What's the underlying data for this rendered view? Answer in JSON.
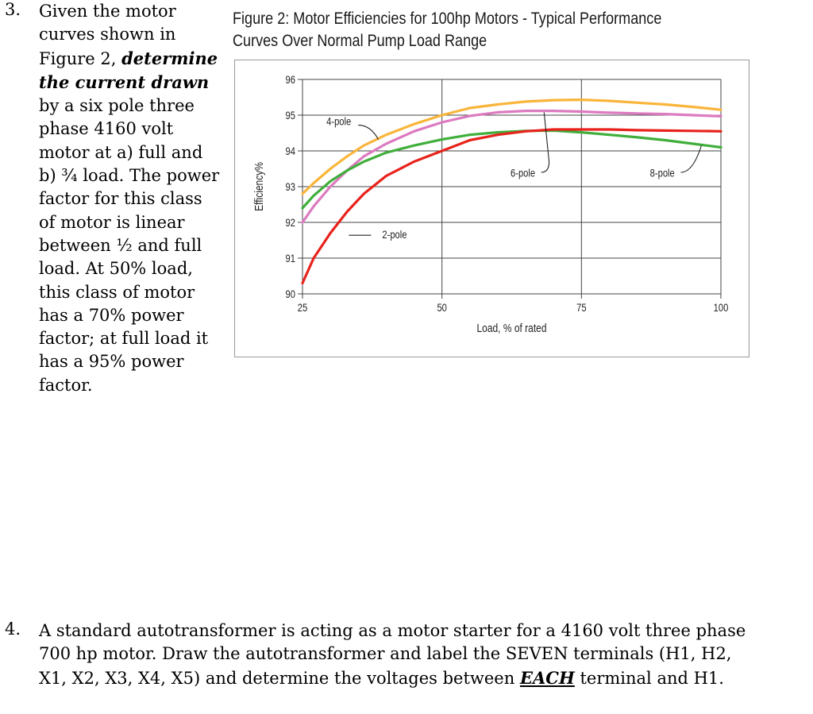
{
  "question3": {
    "number": "3.",
    "text_before": "Given the motor curves shown in Figure 2, ",
    "emphasis": "determine the current drawn",
    "text_after": " by a six pole three phase 4160 volt motor at a) full and b) ¾ load.  The power factor for this class of motor is linear between ½ and full load.  At 50% load, this class of motor has a 70% power factor; at full load it has a 95% power factor."
  },
  "figure": {
    "title_line1": "Figure 2: Motor Efficiencies for 100hp Motors - Typical Performance",
    "title_line2": "Curves Over Normal Pump Load Range"
  },
  "chart_data": {
    "type": "line",
    "title": "Figure 2: Motor Efficiencies for 100hp Motors - Typical Performance Curves Over Normal Pump Load Range",
    "xlabel": "Load, % of rated",
    "ylabel": "Efficiency%",
    "xlim": [
      25,
      100
    ],
    "ylim": [
      90,
      96
    ],
    "xticks": [
      25,
      50,
      75,
      100
    ],
    "yticks": [
      90,
      91,
      92,
      93,
      94,
      95,
      96
    ],
    "grid": true,
    "series": [
      {
        "name": "2-pole",
        "color": "#e8221b",
        "x": [
          25,
          27,
          30,
          33,
          36,
          40,
          45,
          50,
          55,
          60,
          65,
          70,
          75,
          80,
          85,
          90,
          95,
          100
        ],
        "y": [
          90.3,
          91.0,
          91.7,
          92.3,
          92.8,
          93.3,
          93.7,
          94.0,
          94.3,
          94.45,
          94.55,
          94.6,
          94.6,
          94.6,
          94.58,
          94.57,
          94.56,
          94.55
        ]
      },
      {
        "name": "4-pole",
        "color": "#f9b53a",
        "x": [
          25,
          27,
          30,
          33,
          36,
          40,
          45,
          50,
          55,
          60,
          65,
          70,
          75,
          80,
          85,
          90,
          95,
          100
        ],
        "y": [
          92.8,
          93.1,
          93.5,
          93.85,
          94.15,
          94.45,
          94.75,
          95.0,
          95.2,
          95.3,
          95.38,
          95.42,
          95.43,
          95.4,
          95.35,
          95.3,
          95.23,
          95.15
        ]
      },
      {
        "name": "6-pole",
        "color": "#dc7ac0",
        "x": [
          25,
          27,
          30,
          33,
          36,
          40,
          45,
          50,
          55,
          60,
          65,
          70,
          75,
          80,
          85,
          90,
          95,
          100
        ],
        "y": [
          92.0,
          92.45,
          93.0,
          93.45,
          93.85,
          94.2,
          94.55,
          94.8,
          94.98,
          95.08,
          95.12,
          95.12,
          95.1,
          95.07,
          95.05,
          95.03,
          95.0,
          94.97
        ]
      },
      {
        "name": "8-pole",
        "color": "#3fae3a",
        "x": [
          25,
          27,
          30,
          33,
          36,
          40,
          45,
          50,
          55,
          60,
          65,
          70,
          75,
          80,
          85,
          90,
          95,
          100
        ],
        "y": [
          92.4,
          92.75,
          93.15,
          93.45,
          93.7,
          93.95,
          94.15,
          94.32,
          94.45,
          94.52,
          94.56,
          94.57,
          94.52,
          94.45,
          94.38,
          94.3,
          94.2,
          94.1
        ]
      }
    ],
    "annotations": [
      {
        "text": "4-pole",
        "series": "4-pole"
      },
      {
        "text": "2-pole",
        "series": "2-pole"
      },
      {
        "text": "6-pole",
        "series": "6-pole"
      },
      {
        "text": "8-pole",
        "series": "8-pole"
      }
    ]
  },
  "question4": {
    "number": "4.",
    "text_before": "A standard autotransformer is acting as a motor starter for a 4160 volt three phase 700 hp motor.  Draw the autotransformer and label the SEVEN terminals (H1, H2, X1, X2, X3, X4, X5) and determine the voltages between ",
    "emphasis": "EACH",
    "text_after": " terminal and H1."
  }
}
